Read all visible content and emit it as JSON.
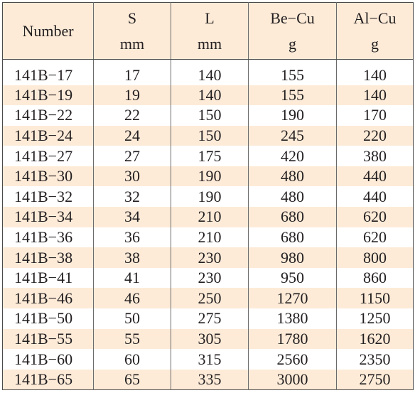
{
  "table": {
    "headers": [
      {
        "line1": "Number",
        "line2": ""
      },
      {
        "line1": "S",
        "line2": "mm"
      },
      {
        "line1": "L",
        "line2": "mm"
      },
      {
        "line1": "Be−Cu",
        "line2": "g"
      },
      {
        "line1": "Al−Cu",
        "line2": "g"
      }
    ],
    "rows": [
      [
        "141B−17",
        "17",
        "140",
        "155",
        "140"
      ],
      [
        "141B−19",
        "19",
        "140",
        "155",
        "140"
      ],
      [
        "141B−22",
        "22",
        "150",
        "190",
        "170"
      ],
      [
        "141B−24",
        "24",
        "150",
        "245",
        "220"
      ],
      [
        "141B−27",
        "27",
        "175",
        "420",
        "380"
      ],
      [
        "141B−30",
        "30",
        "190",
        "480",
        "440"
      ],
      [
        "141B−32",
        "32",
        "190",
        "480",
        "440"
      ],
      [
        "141B−34",
        "34",
        "210",
        "680",
        "620"
      ],
      [
        "141B−36",
        "36",
        "210",
        "680",
        "620"
      ],
      [
        "141B−38",
        "38",
        "230",
        "980",
        "800"
      ],
      [
        "141B−41",
        "41",
        "230",
        "950",
        "860"
      ],
      [
        "141B−46",
        "46",
        "250",
        "1270",
        "1150"
      ],
      [
        "141B−50",
        "50",
        "275",
        "1380",
        "1250"
      ],
      [
        "141B−55",
        "55",
        "305",
        "1780",
        "1620"
      ],
      [
        "141B−60",
        "60",
        "315",
        "2560",
        "2350"
      ],
      [
        "141B−65",
        "65",
        "335",
        "3000",
        "2750"
      ]
    ]
  },
  "colors": {
    "stripe": "#fdebd8",
    "border": "#4a4a4a",
    "text": "#231f20"
  }
}
